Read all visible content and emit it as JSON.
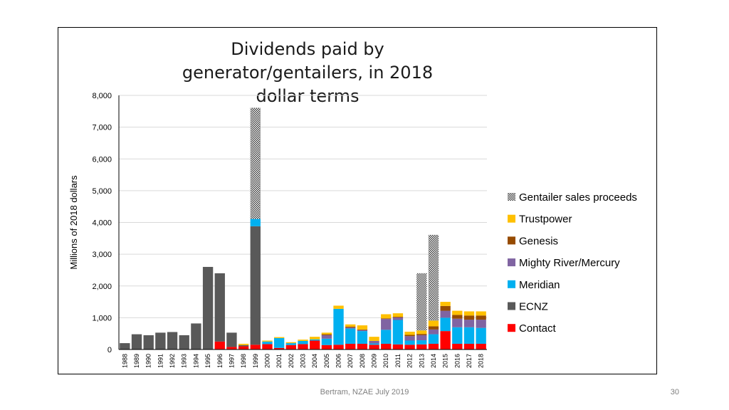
{
  "chart_data": {
    "type": "bar",
    "stacked": true,
    "title": "Dividends paid by generator/gentailers, in 2018 dollar terms",
    "ylabel": "Millions of 2018 dollars",
    "xlabel": "",
    "ylim": [
      0,
      8000
    ],
    "yticks": [
      0,
      1000,
      2000,
      3000,
      4000,
      5000,
      6000,
      7000,
      8000
    ],
    "ytick_labels": [
      "0",
      "1,000",
      "2,000",
      "3,000",
      "4,000",
      "5,000",
      "6,000",
      "7,000",
      "8,000"
    ],
    "grid": true,
    "legend_position": "right",
    "categories": [
      "1988",
      "1989",
      "1990",
      "1991",
      "1992",
      "1993",
      "1994",
      "1995",
      "1996",
      "1997",
      "1998",
      "1999",
      "2000",
      "2001",
      "2002",
      "2003",
      "2004",
      "2005",
      "2006",
      "2007",
      "2008",
      "2009",
      "2010",
      "2011",
      "2012",
      "2013",
      "2014",
      "2015",
      "2016",
      "2017",
      "2018"
    ],
    "series": [
      {
        "name": "Contact",
        "color": "#ff0000",
        "values": [
          0,
          0,
          0,
          0,
          0,
          0,
          0,
          0,
          250,
          80,
          100,
          150,
          170,
          50,
          140,
          170,
          280,
          140,
          150,
          180,
          180,
          150,
          180,
          160,
          150,
          160,
          180,
          580,
          180,
          180,
          180
        ]
      },
      {
        "name": "ECNZ",
        "color": "#595959",
        "values": [
          200,
          480,
          450,
          530,
          550,
          450,
          820,
          2600,
          2150,
          450,
          40,
          3730,
          0,
          0,
          0,
          0,
          0,
          0,
          0,
          0,
          0,
          0,
          0,
          0,
          0,
          0,
          0,
          0,
          0,
          0,
          0
        ]
      },
      {
        "name": "Meridian",
        "color": "#00b0f0",
        "values": [
          0,
          0,
          0,
          0,
          0,
          0,
          0,
          0,
          0,
          0,
          0,
          230,
          80,
          310,
          60,
          100,
          40,
          200,
          1130,
          480,
          400,
          40,
          440,
          770,
          130,
          130,
          300,
          420,
          520,
          520,
          500
        ]
      },
      {
        "name": "Mighty River/Mercury",
        "color": "#8064a2",
        "values": [
          0,
          0,
          0,
          0,
          0,
          0,
          0,
          0,
          0,
          0,
          0,
          0,
          0,
          0,
          0,
          0,
          0,
          110,
          0,
          30,
          30,
          80,
          340,
          80,
          140,
          160,
          150,
          220,
          270,
          240,
          260
        ]
      },
      {
        "name": "Genesis",
        "color": "#964b00",
        "values": [
          0,
          0,
          0,
          0,
          0,
          0,
          0,
          0,
          0,
          0,
          0,
          0,
          0,
          0,
          0,
          0,
          0,
          30,
          0,
          30,
          20,
          0,
          20,
          20,
          40,
          40,
          100,
          150,
          120,
          130,
          130
        ]
      },
      {
        "name": "Trustpower",
        "color": "#ffc000",
        "values": [
          0,
          0,
          0,
          0,
          0,
          0,
          0,
          0,
          0,
          0,
          40,
          0,
          30,
          30,
          30,
          40,
          80,
          50,
          100,
          70,
          130,
          130,
          130,
          110,
          100,
          110,
          180,
          130,
          130,
          130,
          130
        ]
      },
      {
        "name": "Gentailer sales proceeds",
        "color": "#bfbfbf",
        "pattern": "checker",
        "values": [
          0,
          0,
          0,
          0,
          0,
          0,
          0,
          0,
          0,
          0,
          0,
          3500,
          0,
          0,
          0,
          0,
          0,
          0,
          0,
          0,
          0,
          0,
          0,
          0,
          0,
          1800,
          2700,
          0,
          0,
          0,
          0
        ]
      }
    ],
    "legend_order": [
      "Gentailer sales proceeds",
      "Trustpower",
      "Genesis",
      "Mighty River/Mercury",
      "Meridian",
      "ECNZ",
      "Contact"
    ]
  },
  "footer": {
    "text": "Bertram, NZAE July 2019",
    "page": "30"
  }
}
